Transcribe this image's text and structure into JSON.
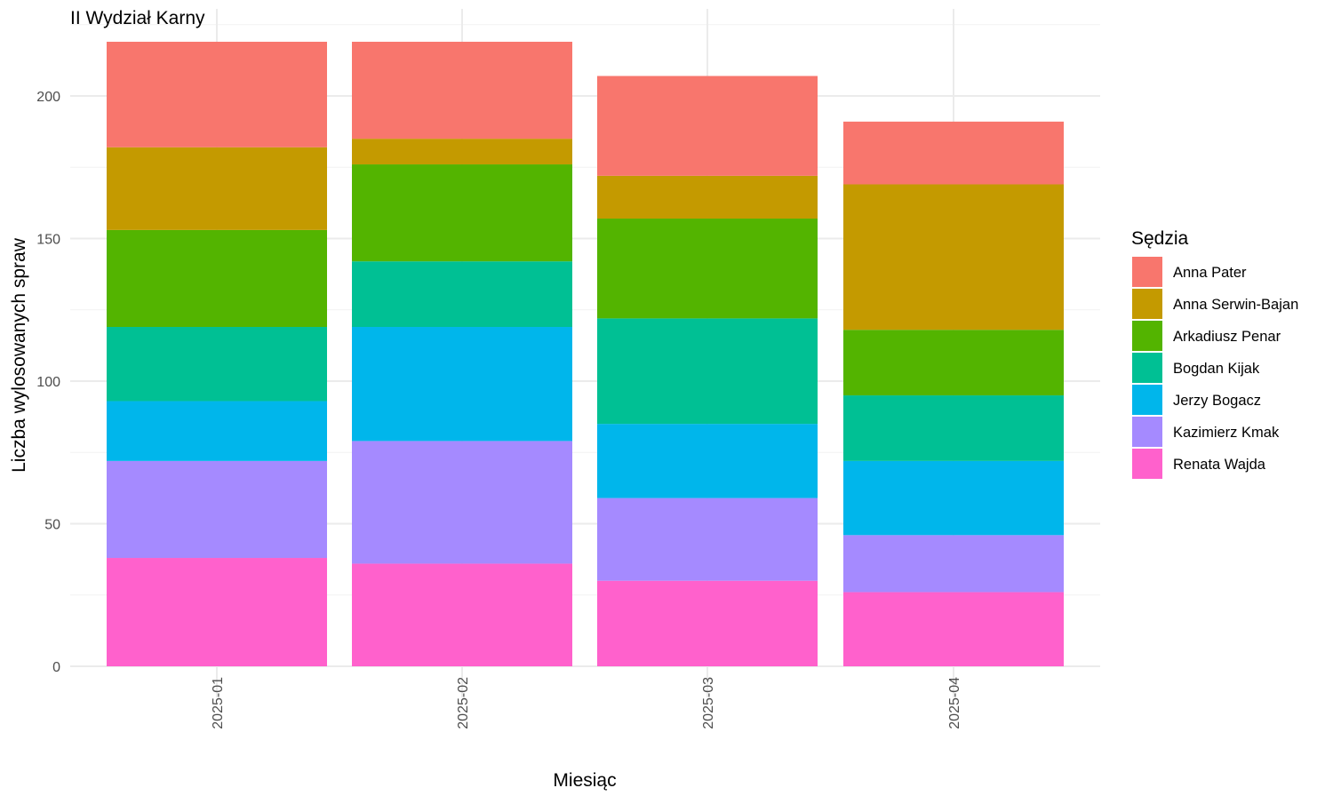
{
  "chart_data": {
    "type": "bar",
    "stacked": true,
    "title": "II Wydział Karny",
    "xlabel": "Miesiąc",
    "ylabel": "Liczba wylosowanych spraw",
    "ylim": [
      0,
      230
    ],
    "yticks": [
      0,
      50,
      100,
      150,
      200
    ],
    "grid": true,
    "legend_title": "Sędzia",
    "legend_position": "right",
    "categories": [
      "2025-01",
      "2025-02",
      "2025-03",
      "2025-04"
    ],
    "series": [
      {
        "name": "Renata Wajda",
        "color": "#FF61CC",
        "values": [
          38,
          36,
          30,
          26
        ]
      },
      {
        "name": "Kazimierz Kmak",
        "color": "#A58AFF",
        "values": [
          34,
          43,
          29,
          20
        ]
      },
      {
        "name": "Jerzy Bogacz",
        "color": "#00B6EB",
        "values": [
          21,
          40,
          26,
          26
        ]
      },
      {
        "name": "Bogdan Kijak",
        "color": "#00C094",
        "values": [
          26,
          23,
          37,
          23
        ]
      },
      {
        "name": "Arkadiusz Penar",
        "color": "#53B400",
        "values": [
          34,
          34,
          35,
          23
        ]
      },
      {
        "name": "Anna Serwin-Bajan",
        "color": "#C49A00",
        "values": [
          29,
          9,
          15,
          51
        ]
      },
      {
        "name": "Anna Pater",
        "color": "#F8766D",
        "values": [
          37,
          34,
          35,
          22
        ]
      }
    ],
    "legend_order": [
      "Anna Pater",
      "Anna Serwin-Bajan",
      "Arkadiusz Penar",
      "Bogdan Kijak",
      "Jerzy Bogacz",
      "Kazimierz Kmak",
      "Renata Wajda"
    ]
  }
}
